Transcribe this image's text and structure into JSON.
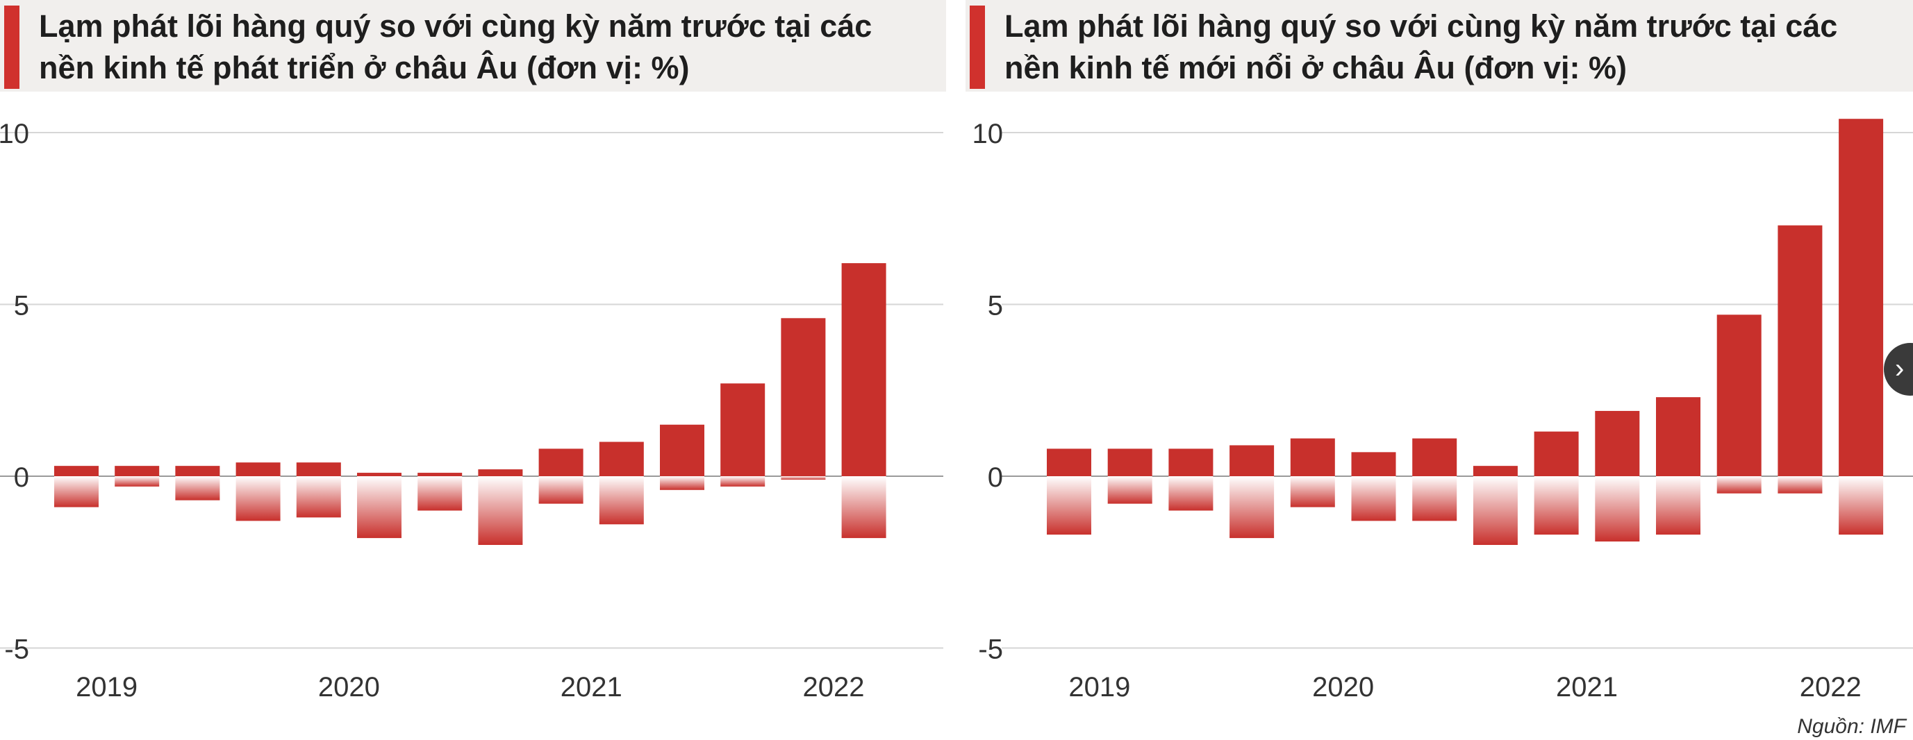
{
  "colors": {
    "bar": "#c8302c",
    "accent": "#d0312d",
    "grid": "#d6d6d6"
  },
  "source_note": "Nguồn: IMF",
  "next_icon": "chevron-right-icon",
  "next_glyph": "›",
  "chart_data": [
    {
      "type": "bar",
      "title": "Lạm phát lõi hàng quý so với cùng kỳ năm trước tại các nền kinh tế phát triển ở châu Âu (đơn vị: %)",
      "ylim": [
        -5,
        10
      ],
      "yticks": [
        -5,
        0,
        5,
        10
      ],
      "ytick_labels": [
        "-5",
        "0",
        "5",
        "10"
      ],
      "year_labels": [
        "2019",
        "2020",
        "2021",
        "2022"
      ],
      "year_label_quarters": [
        1,
        5,
        9,
        13
      ],
      "quarters": 14,
      "values": [
        0.3,
        0.3,
        0.3,
        0.4,
        0.4,
        0.1,
        0.1,
        0.2,
        0.8,
        1.0,
        1.5,
        2.7,
        4.6,
        6.2
      ],
      "negative_values": [
        -0.9,
        -0.3,
        -0.7,
        -1.3,
        -1.2,
        -1.8,
        -1.0,
        -2.0,
        -0.8,
        -1.4,
        -0.4,
        -0.3,
        -0.1,
        -1.8
      ]
    },
    {
      "type": "bar",
      "title": "Lạm phát lõi hàng quý so với cùng kỳ năm trước tại các nền kinh tế mới nổi ở châu Âu (đơn vị: %)",
      "ylim": [
        -5,
        10
      ],
      "yticks": [
        -5,
        0,
        5,
        10
      ],
      "ytick_labels": [
        "-5",
        "0",
        "5",
        "10"
      ],
      "year_labels": [
        "2019",
        "2020",
        "2021",
        "2022"
      ],
      "year_label_quarters": [
        1,
        5,
        9,
        13
      ],
      "quarters": 14,
      "values": [
        0.8,
        0.8,
        0.8,
        0.9,
        1.1,
        0.7,
        1.1,
        0.3,
        1.3,
        1.9,
        2.3,
        4.7,
        7.3,
        10.4
      ],
      "negative_values": [
        -1.7,
        -0.8,
        -1.0,
        -1.8,
        -0.9,
        -1.3,
        -1.3,
        -2.0,
        -1.7,
        -1.9,
        -1.7,
        -0.5,
        -0.5,
        -1.7
      ]
    }
  ]
}
